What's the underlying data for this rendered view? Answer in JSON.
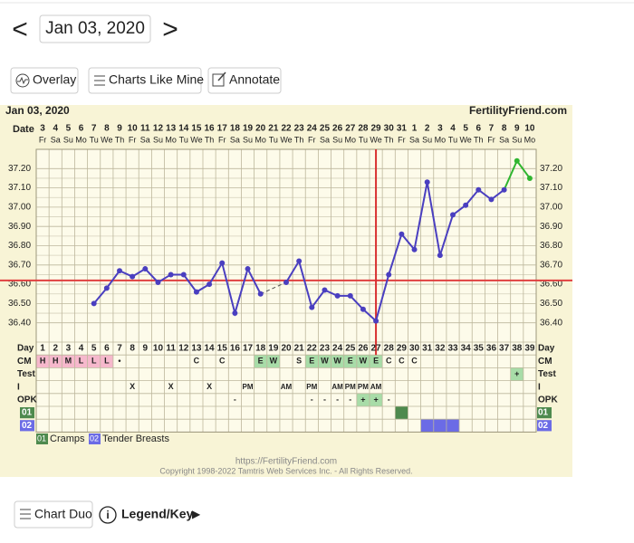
{
  "nav": {
    "prev": "<",
    "date": "Jan 03, 2020",
    "next": ">"
  },
  "toolbar": [
    "Overlay",
    "Charts Like Mine",
    "Annotate"
  ],
  "chart_data": {
    "type": "line",
    "title": "Jan 03, 2020",
    "site": "FertilityFriend.com",
    "date_label": "Date",
    "dates": [
      3,
      4,
      5,
      6,
      7,
      8,
      9,
      10,
      11,
      12,
      13,
      14,
      15,
      16,
      17,
      18,
      19,
      20,
      21,
      22,
      23,
      24,
      25,
      26,
      27,
      28,
      29,
      30,
      31,
      1,
      2,
      3,
      4,
      5,
      6,
      7,
      8,
      9,
      10
    ],
    "weekdays": [
      "Fr",
      "Sa",
      "Su",
      "Mo",
      "Tu",
      "We",
      "Th",
      "Fr",
      "Sa",
      "Su",
      "Mo",
      "Tu",
      "We",
      "Th",
      "Fr",
      "Sa",
      "Su",
      "Mo",
      "Tu",
      "We",
      "Th",
      "Fr",
      "Sa",
      "Su",
      "Mo",
      "Tu",
      "We",
      "Th",
      "Fr",
      "Sa",
      "Su",
      "Mo",
      "Tu",
      "We",
      "Th",
      "Fr",
      "Sa",
      "Su",
      "Mo"
    ],
    "day_label": "Day",
    "cycle_days": [
      1,
      2,
      3,
      4,
      5,
      6,
      7,
      8,
      9,
      10,
      11,
      12,
      13,
      14,
      15,
      16,
      17,
      18,
      19,
      20,
      21,
      22,
      23,
      24,
      25,
      26,
      27,
      28,
      29,
      30,
      31,
      32,
      33,
      34,
      35,
      36,
      37,
      38,
      39
    ],
    "ylim": [
      36.3,
      37.3
    ],
    "yticks": [
      {
        "value": 36.4,
        "label": "36.40"
      },
      {
        "value": 36.5,
        "label": "36.50"
      },
      {
        "value": 36.6,
        "label": "36.60"
      },
      {
        "value": 36.7,
        "label": "36.70"
      },
      {
        "value": 36.8,
        "label": "36.80"
      },
      {
        "value": 36.9,
        "label": "36.90"
      },
      {
        "value": 37.0,
        "label": "37.00"
      },
      {
        "value": 37.1,
        "label": "37.10"
      },
      {
        "value": 37.2,
        "label": "37.20"
      }
    ],
    "grid": true,
    "series": [
      {
        "color": "#4a3fc0",
        "values": [
          null,
          null,
          null,
          null,
          36.5,
          36.58,
          36.67,
          36.64,
          36.68,
          36.61,
          36.65,
          36.65,
          36.56,
          36.6,
          36.71,
          36.45,
          36.68,
          36.55,
          null,
          36.61,
          36.72,
          36.48,
          36.57,
          36.54,
          36.54,
          36.47,
          36.41,
          36.65,
          36.86,
          36.78,
          37.13,
          36.75,
          36.96,
          37.01,
          37.09,
          37.04,
          37.09,
          null,
          null
        ]
      },
      {
        "color": "#2fb52f",
        "values": [
          null,
          null,
          null,
          null,
          null,
          null,
          null,
          null,
          null,
          null,
          null,
          null,
          null,
          null,
          null,
          null,
          null,
          null,
          null,
          null,
          null,
          null,
          null,
          null,
          null,
          null,
          null,
          null,
          null,
          null,
          null,
          null,
          null,
          null,
          null,
          null,
          null,
          37.24,
          37.15
        ]
      }
    ],
    "coverline": {
      "value": 36.62,
      "color": "#e04040"
    },
    "ovulation_day": 27,
    "ovulation_color": "#d83030",
    "rows": [
      {
        "label": "CM",
        "values": [
          "H",
          "H",
          "M",
          "L",
          "L",
          "L",
          "•",
          null,
          null,
          null,
          null,
          null,
          "C",
          null,
          "C",
          null,
          null,
          "E",
          "W",
          null,
          "S",
          "E",
          "W",
          "W",
          "E",
          "W",
          "E",
          "C",
          "C",
          "C",
          null,
          null,
          null,
          null,
          null,
          null,
          null,
          null,
          null
        ],
        "colors": [
          "#f6b8cc",
          "#f6b8cc",
          "#f6b8cc",
          "#f6b8cc",
          "#f6b8cc",
          "#f6b8cc",
          null,
          null,
          null,
          null,
          null,
          null,
          null,
          null,
          null,
          null,
          null,
          "#a8dca8",
          "#a8dca8",
          null,
          null,
          "#a8dca8",
          "#a8dca8",
          "#a8dca8",
          "#a8dca8",
          "#a8dca8",
          "#a8dca8",
          null,
          null,
          null,
          null,
          null,
          null,
          null,
          null,
          null,
          null,
          null,
          null
        ]
      },
      {
        "label": "Test",
        "values": [
          null,
          null,
          null,
          null,
          null,
          null,
          null,
          null,
          null,
          null,
          null,
          null,
          null,
          null,
          null,
          null,
          null,
          null,
          null,
          null,
          null,
          null,
          null,
          null,
          null,
          null,
          null,
          null,
          null,
          null,
          null,
          null,
          null,
          null,
          null,
          null,
          null,
          "+",
          null
        ],
        "colors": [
          null,
          null,
          null,
          null,
          null,
          null,
          null,
          null,
          null,
          null,
          null,
          null,
          null,
          null,
          null,
          null,
          null,
          null,
          null,
          null,
          null,
          null,
          null,
          null,
          null,
          null,
          null,
          null,
          null,
          null,
          null,
          null,
          null,
          null,
          null,
          null,
          null,
          "#a8dca8",
          null
        ]
      },
      {
        "label": "I",
        "values": [
          null,
          null,
          null,
          null,
          null,
          null,
          null,
          "X",
          null,
          null,
          "X",
          null,
          null,
          "X",
          null,
          null,
          "PM",
          null,
          null,
          "AM",
          null,
          "PM",
          null,
          "AM",
          "PM",
          "PM",
          "AM",
          null,
          null,
          null,
          null,
          null,
          null,
          null,
          null,
          null,
          null,
          null,
          null
        ]
      },
      {
        "label": "OPK",
        "values": [
          null,
          null,
          null,
          null,
          null,
          null,
          null,
          null,
          null,
          null,
          null,
          null,
          null,
          null,
          null,
          "-",
          null,
          null,
          null,
          null,
          null,
          "-",
          "-",
          "-",
          "-",
          "+",
          "+",
          "-",
          null,
          null,
          null,
          null,
          null,
          null,
          null,
          null,
          null,
          null,
          null
        ],
        "colors": [
          null,
          null,
          null,
          null,
          null,
          null,
          null,
          null,
          null,
          null,
          null,
          null,
          null,
          null,
          null,
          null,
          null,
          null,
          null,
          null,
          null,
          null,
          null,
          null,
          null,
          "#a8dca8",
          "#a8dca8",
          null,
          null,
          null,
          null,
          null,
          null,
          null,
          null,
          null,
          null,
          null,
          null
        ]
      }
    ],
    "symptoms": [
      {
        "code": "01",
        "name": "Cramps",
        "color": "#4e8a4e",
        "days": [
          29
        ]
      },
      {
        "code": "02",
        "name": "Tender Breasts",
        "color": "#6b6be6",
        "days": [
          31,
          32,
          33
        ]
      }
    ]
  },
  "footer": {
    "url": "https://FertilityFriend.com",
    "copyright": "Copyright 1998-2022 Tamtris Web Services Inc. - All Rights Reserved."
  },
  "bottom": {
    "chart_duo": "Chart Duo",
    "info_icon": "i",
    "legend_key": "Legend/Key",
    "legend_arrow": "▶"
  }
}
